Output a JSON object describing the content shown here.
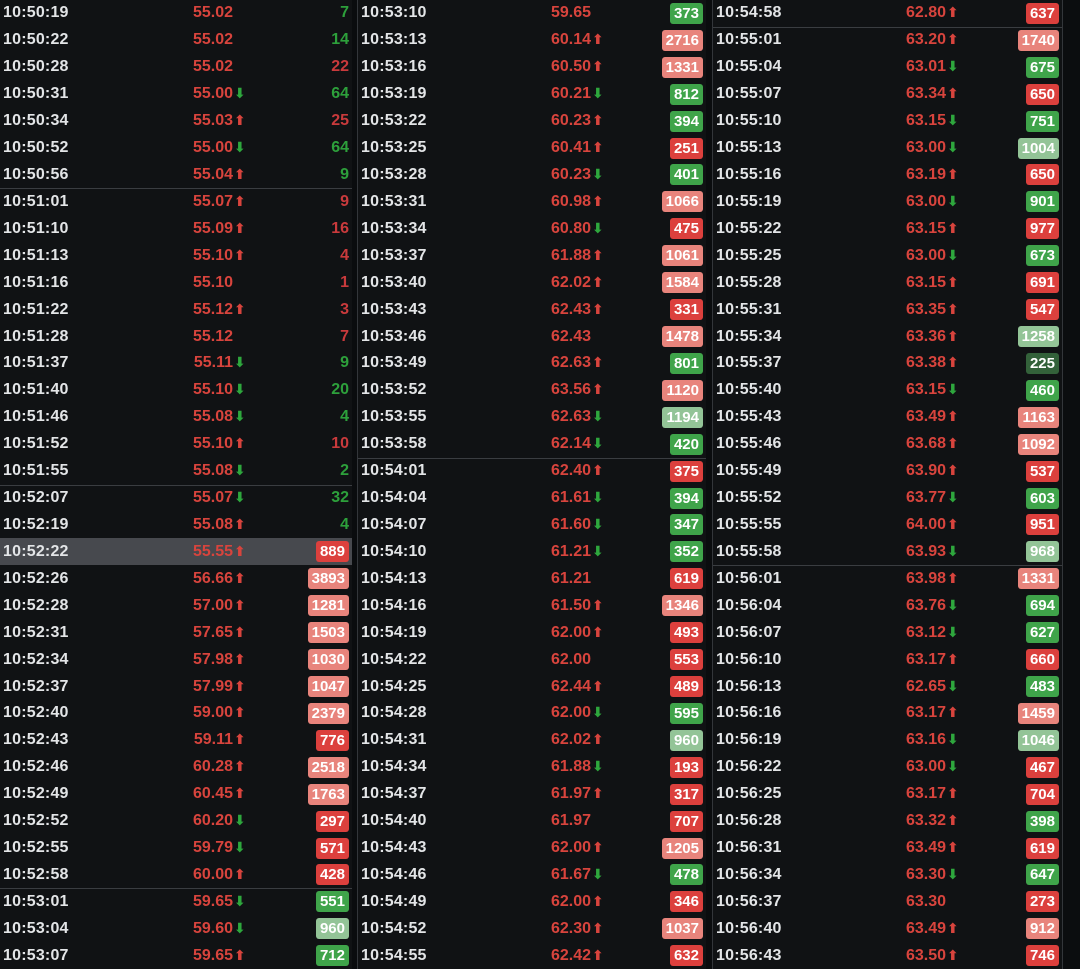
{
  "icons": {
    "up_arrow": "⬆",
    "down_arrow": "⬇"
  },
  "colors": {
    "background": "#0c0e10",
    "time_text": "#e3e5e7",
    "price_up_red": "#d8443d",
    "arrow_down_green": "#2ea73d",
    "volume_text_red": "#c93a3c",
    "volume_text_green": "#2da03b",
    "badge_red": "#dc403d",
    "badge_red_light": "#e8847c",
    "badge_green": "#3fa44a",
    "badge_green_light": "#93c497",
    "badge_green_dark": "#33613a",
    "highlight_row": "#47494e"
  },
  "panels": [
    {
      "name": "tick-panel-1",
      "rows": [
        {
          "time": "10:50:19",
          "price": "55.02",
          "dir": "none",
          "vol": "7",
          "vs": "tg"
        },
        {
          "time": "10:50:22",
          "price": "55.02",
          "dir": "none",
          "vol": "14",
          "vs": "tg"
        },
        {
          "time": "10:50:28",
          "price": "55.02",
          "dir": "none",
          "vol": "22",
          "vs": "tr"
        },
        {
          "time": "10:50:31",
          "price": "55.00",
          "dir": "down",
          "vol": "64",
          "vs": "tg"
        },
        {
          "time": "10:50:34",
          "price": "55.03",
          "dir": "up",
          "vol": "25",
          "vs": "tr"
        },
        {
          "time": "10:50:52",
          "price": "55.00",
          "dir": "down",
          "vol": "64",
          "vs": "tg"
        },
        {
          "time": "10:50:56",
          "price": "55.04",
          "dir": "up",
          "vol": "9",
          "vs": "tg"
        },
        {
          "time": "10:51:01",
          "price": "55.07",
          "dir": "up",
          "vol": "9",
          "vs": "tr",
          "div": true
        },
        {
          "time": "10:51:10",
          "price": "55.09",
          "dir": "up",
          "vol": "16",
          "vs": "tr"
        },
        {
          "time": "10:51:13",
          "price": "55.10",
          "dir": "up",
          "vol": "4",
          "vs": "tr"
        },
        {
          "time": "10:51:16",
          "price": "55.10",
          "dir": "none",
          "vol": "1",
          "vs": "tr"
        },
        {
          "time": "10:51:22",
          "price": "55.12",
          "dir": "up",
          "vol": "3",
          "vs": "tr"
        },
        {
          "time": "10:51:28",
          "price": "55.12",
          "dir": "none",
          "vol": "7",
          "vs": "tr"
        },
        {
          "time": "10:51:37",
          "price": "55.11",
          "dir": "down",
          "vol": "9",
          "vs": "tg"
        },
        {
          "time": "10:51:40",
          "price": "55.10",
          "dir": "down",
          "vol": "20",
          "vs": "tg"
        },
        {
          "time": "10:51:46",
          "price": "55.08",
          "dir": "down",
          "vol": "4",
          "vs": "tg"
        },
        {
          "time": "10:51:52",
          "price": "55.10",
          "dir": "up",
          "vol": "10",
          "vs": "tr"
        },
        {
          "time": "10:51:55",
          "price": "55.08",
          "dir": "down",
          "vol": "2",
          "vs": "tg"
        },
        {
          "time": "10:52:07",
          "price": "55.07",
          "dir": "down",
          "vol": "32",
          "vs": "tg",
          "div": true
        },
        {
          "time": "10:52:19",
          "price": "55.08",
          "dir": "up",
          "vol": "4",
          "vs": "tg"
        },
        {
          "time": "10:52:22",
          "price": "55.55",
          "dir": "up",
          "vol": "889",
          "vs": "r1",
          "hl": true
        },
        {
          "time": "10:52:26",
          "price": "56.66",
          "dir": "up",
          "vol": "3893",
          "vs": "r2"
        },
        {
          "time": "10:52:28",
          "price": "57.00",
          "dir": "up",
          "vol": "1281",
          "vs": "r2"
        },
        {
          "time": "10:52:31",
          "price": "57.65",
          "dir": "up",
          "vol": "1503",
          "vs": "r2"
        },
        {
          "time": "10:52:34",
          "price": "57.98",
          "dir": "up",
          "vol": "1030",
          "vs": "r2"
        },
        {
          "time": "10:52:37",
          "price": "57.99",
          "dir": "up",
          "vol": "1047",
          "vs": "r2"
        },
        {
          "time": "10:52:40",
          "price": "59.00",
          "dir": "up",
          "vol": "2379",
          "vs": "r2"
        },
        {
          "time": "10:52:43",
          "price": "59.11",
          "dir": "up",
          "vol": "776",
          "vs": "r1"
        },
        {
          "time": "10:52:46",
          "price": "60.28",
          "dir": "up",
          "vol": "2518",
          "vs": "r2"
        },
        {
          "time": "10:52:49",
          "price": "60.45",
          "dir": "up",
          "vol": "1763",
          "vs": "r2"
        },
        {
          "time": "10:52:52",
          "price": "60.20",
          "dir": "down",
          "vol": "297",
          "vs": "r1"
        },
        {
          "time": "10:52:55",
          "price": "59.79",
          "dir": "down",
          "vol": "571",
          "vs": "r1"
        },
        {
          "time": "10:52:58",
          "price": "60.00",
          "dir": "up",
          "vol": "428",
          "vs": "r1"
        },
        {
          "time": "10:53:01",
          "price": "59.65",
          "dir": "down",
          "vol": "551",
          "vs": "g1",
          "div": true
        },
        {
          "time": "10:53:04",
          "price": "59.60",
          "dir": "down",
          "vol": "960",
          "vs": "g2"
        },
        {
          "time": "10:53:07",
          "price": "59.65",
          "dir": "up",
          "vol": "712",
          "vs": "g1"
        }
      ]
    },
    {
      "name": "tick-panel-2",
      "rows": [
        {
          "time": "10:53:10",
          "price": "59.65",
          "dir": "none",
          "vol": "373",
          "vs": "g1"
        },
        {
          "time": "10:53:13",
          "price": "60.14",
          "dir": "up",
          "vol": "2716",
          "vs": "r2"
        },
        {
          "time": "10:53:16",
          "price": "60.50",
          "dir": "up",
          "vol": "1331",
          "vs": "r2"
        },
        {
          "time": "10:53:19",
          "price": "60.21",
          "dir": "down",
          "vol": "812",
          "vs": "g1"
        },
        {
          "time": "10:53:22",
          "price": "60.23",
          "dir": "up",
          "vol": "394",
          "vs": "g1"
        },
        {
          "time": "10:53:25",
          "price": "60.41",
          "dir": "up",
          "vol": "251",
          "vs": "r1"
        },
        {
          "time": "10:53:28",
          "price": "60.23",
          "dir": "down",
          "vol": "401",
          "vs": "g1"
        },
        {
          "time": "10:53:31",
          "price": "60.98",
          "dir": "up",
          "vol": "1066",
          "vs": "r2"
        },
        {
          "time": "10:53:34",
          "price": "60.80",
          "dir": "down",
          "vol": "475",
          "vs": "r1"
        },
        {
          "time": "10:53:37",
          "price": "61.88",
          "dir": "up",
          "vol": "1061",
          "vs": "r2"
        },
        {
          "time": "10:53:40",
          "price": "62.02",
          "dir": "up",
          "vol": "1584",
          "vs": "r2"
        },
        {
          "time": "10:53:43",
          "price": "62.43",
          "dir": "up",
          "vol": "331",
          "vs": "r1"
        },
        {
          "time": "10:53:46",
          "price": "62.43",
          "dir": "none",
          "vol": "1478",
          "vs": "r2"
        },
        {
          "time": "10:53:49",
          "price": "62.63",
          "dir": "up",
          "vol": "801",
          "vs": "g1"
        },
        {
          "time": "10:53:52",
          "price": "63.56",
          "dir": "up",
          "vol": "1120",
          "vs": "r2"
        },
        {
          "time": "10:53:55",
          "price": "62.63",
          "dir": "down",
          "vol": "1194",
          "vs": "g2"
        },
        {
          "time": "10:53:58",
          "price": "62.14",
          "dir": "down",
          "vol": "420",
          "vs": "g1"
        },
        {
          "time": "10:54:01",
          "price": "62.40",
          "dir": "up",
          "vol": "375",
          "vs": "r1",
          "div": true
        },
        {
          "time": "10:54:04",
          "price": "61.61",
          "dir": "down",
          "vol": "394",
          "vs": "g1"
        },
        {
          "time": "10:54:07",
          "price": "61.60",
          "dir": "down",
          "vol": "347",
          "vs": "g1"
        },
        {
          "time": "10:54:10",
          "price": "61.21",
          "dir": "down",
          "vol": "352",
          "vs": "g1"
        },
        {
          "time": "10:54:13",
          "price": "61.21",
          "dir": "none",
          "vol": "619",
          "vs": "r1"
        },
        {
          "time": "10:54:16",
          "price": "61.50",
          "dir": "up",
          "vol": "1346",
          "vs": "r2"
        },
        {
          "time": "10:54:19",
          "price": "62.00",
          "dir": "up",
          "vol": "493",
          "vs": "r1"
        },
        {
          "time": "10:54:22",
          "price": "62.00",
          "dir": "none",
          "vol": "553",
          "vs": "r1"
        },
        {
          "time": "10:54:25",
          "price": "62.44",
          "dir": "up",
          "vol": "489",
          "vs": "r1"
        },
        {
          "time": "10:54:28",
          "price": "62.00",
          "dir": "down",
          "vol": "595",
          "vs": "g1"
        },
        {
          "time": "10:54:31",
          "price": "62.02",
          "dir": "up",
          "vol": "960",
          "vs": "g2"
        },
        {
          "time": "10:54:34",
          "price": "61.88",
          "dir": "down",
          "vol": "193",
          "vs": "r1"
        },
        {
          "time": "10:54:37",
          "price": "61.97",
          "dir": "up",
          "vol": "317",
          "vs": "r1"
        },
        {
          "time": "10:54:40",
          "price": "61.97",
          "dir": "none",
          "vol": "707",
          "vs": "r1"
        },
        {
          "time": "10:54:43",
          "price": "62.00",
          "dir": "up",
          "vol": "1205",
          "vs": "r2"
        },
        {
          "time": "10:54:46",
          "price": "61.67",
          "dir": "down",
          "vol": "478",
          "vs": "g1"
        },
        {
          "time": "10:54:49",
          "price": "62.00",
          "dir": "up",
          "vol": "346",
          "vs": "r1"
        },
        {
          "time": "10:54:52",
          "price": "62.30",
          "dir": "up",
          "vol": "1037",
          "vs": "r2"
        },
        {
          "time": "10:54:55",
          "price": "62.42",
          "dir": "up",
          "vol": "632",
          "vs": "r1"
        }
      ]
    },
    {
      "name": "tick-panel-3",
      "rows": [
        {
          "time": "10:54:58",
          "price": "62.80",
          "dir": "up",
          "vol": "637",
          "vs": "r1"
        },
        {
          "time": "10:55:01",
          "price": "63.20",
          "dir": "up",
          "vol": "1740",
          "vs": "r2",
          "div": true
        },
        {
          "time": "10:55:04",
          "price": "63.01",
          "dir": "down",
          "vol": "675",
          "vs": "g1"
        },
        {
          "time": "10:55:07",
          "price": "63.34",
          "dir": "up",
          "vol": "650",
          "vs": "r1"
        },
        {
          "time": "10:55:10",
          "price": "63.15",
          "dir": "down",
          "vol": "751",
          "vs": "g1"
        },
        {
          "time": "10:55:13",
          "price": "63.00",
          "dir": "down",
          "vol": "1004",
          "vs": "g2"
        },
        {
          "time": "10:55:16",
          "price": "63.19",
          "dir": "up",
          "vol": "650",
          "vs": "r1"
        },
        {
          "time": "10:55:19",
          "price": "63.00",
          "dir": "down",
          "vol": "901",
          "vs": "g1"
        },
        {
          "time": "10:55:22",
          "price": "63.15",
          "dir": "up",
          "vol": "977",
          "vs": "r1"
        },
        {
          "time": "10:55:25",
          "price": "63.00",
          "dir": "down",
          "vol": "673",
          "vs": "g1"
        },
        {
          "time": "10:55:28",
          "price": "63.15",
          "dir": "up",
          "vol": "691",
          "vs": "r1"
        },
        {
          "time": "10:55:31",
          "price": "63.35",
          "dir": "up",
          "vol": "547",
          "vs": "r1"
        },
        {
          "time": "10:55:34",
          "price": "63.36",
          "dir": "up",
          "vol": "1258",
          "vs": "g2"
        },
        {
          "time": "10:55:37",
          "price": "63.38",
          "dir": "up",
          "vol": "225",
          "vs": "g3"
        },
        {
          "time": "10:55:40",
          "price": "63.15",
          "dir": "down",
          "vol": "460",
          "vs": "g1"
        },
        {
          "time": "10:55:43",
          "price": "63.49",
          "dir": "up",
          "vol": "1163",
          "vs": "r2"
        },
        {
          "time": "10:55:46",
          "price": "63.68",
          "dir": "up",
          "vol": "1092",
          "vs": "r2"
        },
        {
          "time": "10:55:49",
          "price": "63.90",
          "dir": "up",
          "vol": "537",
          "vs": "r1"
        },
        {
          "time": "10:55:52",
          "price": "63.77",
          "dir": "down",
          "vol": "603",
          "vs": "g1"
        },
        {
          "time": "10:55:55",
          "price": "64.00",
          "dir": "up",
          "vol": "951",
          "vs": "r1"
        },
        {
          "time": "10:55:58",
          "price": "63.93",
          "dir": "down",
          "vol": "968",
          "vs": "g2"
        },
        {
          "time": "10:56:01",
          "price": "63.98",
          "dir": "up",
          "vol": "1331",
          "vs": "r2",
          "div": true
        },
        {
          "time": "10:56:04",
          "price": "63.76",
          "dir": "down",
          "vol": "694",
          "vs": "g1"
        },
        {
          "time": "10:56:07",
          "price": "63.12",
          "dir": "down",
          "vol": "627",
          "vs": "g1"
        },
        {
          "time": "10:56:10",
          "price": "63.17",
          "dir": "up",
          "vol": "660",
          "vs": "r1"
        },
        {
          "time": "10:56:13",
          "price": "62.65",
          "dir": "down",
          "vol": "483",
          "vs": "g1"
        },
        {
          "time": "10:56:16",
          "price": "63.17",
          "dir": "up",
          "vol": "1459",
          "vs": "r2"
        },
        {
          "time": "10:56:19",
          "price": "63.16",
          "dir": "down",
          "vol": "1046",
          "vs": "g2"
        },
        {
          "time": "10:56:22",
          "price": "63.00",
          "dir": "down",
          "vol": "467",
          "vs": "r1"
        },
        {
          "time": "10:56:25",
          "price": "63.17",
          "dir": "up",
          "vol": "704",
          "vs": "r1"
        },
        {
          "time": "10:56:28",
          "price": "63.32",
          "dir": "up",
          "vol": "398",
          "vs": "g1"
        },
        {
          "time": "10:56:31",
          "price": "63.49",
          "dir": "up",
          "vol": "619",
          "vs": "r1"
        },
        {
          "time": "10:56:34",
          "price": "63.30",
          "dir": "down",
          "vol": "647",
          "vs": "g1"
        },
        {
          "time": "10:56:37",
          "price": "63.30",
          "dir": "none",
          "vol": "273",
          "vs": "r1"
        },
        {
          "time": "10:56:40",
          "price": "63.49",
          "dir": "up",
          "vol": "912",
          "vs": "r2"
        },
        {
          "time": "10:56:43",
          "price": "63.50",
          "dir": "up",
          "vol": "746",
          "vs": "r1"
        }
      ]
    }
  ]
}
